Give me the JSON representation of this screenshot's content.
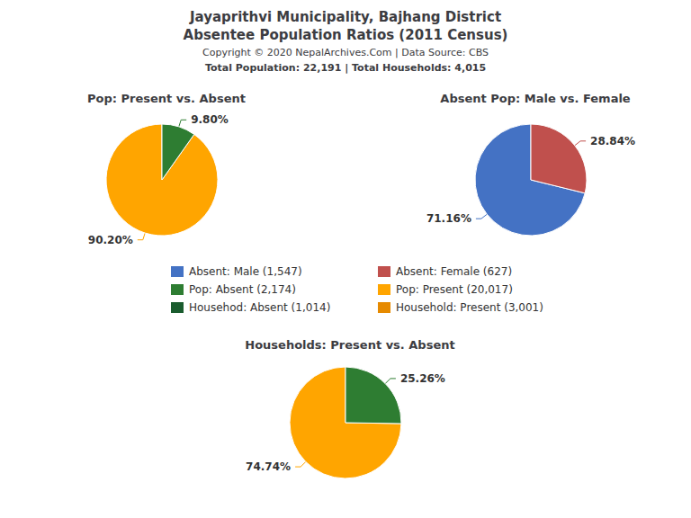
{
  "title": "Jayaprithvi Municipality, Bajhang District",
  "subtitle": "Absentee Population Ratios (2011 Census)",
  "annotations": [
    "Copyright © 2020 NepalArchives.Com | Data Source: CBS",
    "Total Population: 22,191 | Total Households: 4,015"
  ],
  "legend_entries": [
    {
      "name": "Absent: Male (1,547)",
      "color": "#4472C4"
    },
    {
      "name": "Absent: Female (627)",
      "color": "#C0504D"
    },
    {
      "name": "Pop: Absent (2,174)",
      "color": "#2e7d32"
    },
    {
      "name": "Pop: Present (20,017)",
      "color": "#FFA500"
    },
    {
      "name": "Househod: Absent (1,014)",
      "color": "#1a5c2e"
    },
    {
      "name": "Household: Present (3,001)",
      "color": "#e68a00"
    }
  ],
  "chart_data": [
    {
      "type": "pie",
      "title": "Pop: Present vs. Absent",
      "values": [
        90.2,
        9.8
      ],
      "value_labels": [
        "90.20%",
        "9.80%"
      ],
      "colors": [
        "#FFA500",
        "#2e7d32"
      ],
      "data_labels": true
    },
    {
      "type": "pie",
      "title": "Absent Pop: Male vs. Female",
      "values": [
        71.16,
        28.84
      ],
      "value_labels": [
        "71.16%",
        "28.84%"
      ],
      "colors": [
        "#4472C4",
        "#C0504D"
      ],
      "data_labels": true
    },
    {
      "type": "pie",
      "title": "Households: Present vs. Absent",
      "values": [
        74.74,
        25.26
      ],
      "value_labels": [
        "74.74%",
        "25.26%"
      ],
      "colors": [
        "#FFA500",
        "#2e7d32"
      ],
      "data_labels": true
    }
  ]
}
